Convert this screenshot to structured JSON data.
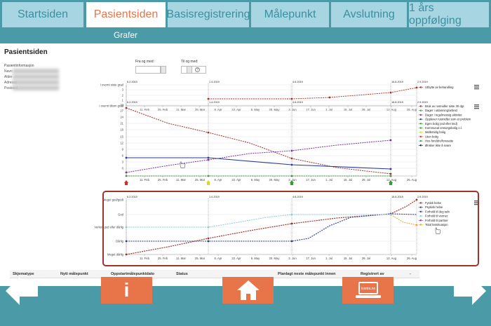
{
  "tabs": [
    {
      "label": "Startsiden",
      "active": false
    },
    {
      "label": "Pasientsiden",
      "active": true
    },
    {
      "label": "Basisregistrering",
      "active": false
    },
    {
      "label": "Målepunkt",
      "active": false
    },
    {
      "label": "Avslutning",
      "active": false
    },
    {
      "label": "1 års oppfølging",
      "active": false
    }
  ],
  "subtab": "Grafer",
  "page_title": "Pasientsiden",
  "patient_info": {
    "label": "Pasientinformasjon",
    "rows": [
      "Navn",
      "Alder",
      "Adresse",
      "Poststed"
    ]
  },
  "date_filter": {
    "from_label": "Fra og med:",
    "to_label": "Til og med:",
    "help": "?"
  },
  "chart_menu_icon": "menu-icon",
  "charts": [
    {
      "name": "treatment",
      "y_ticks": [
        "I overnt siste grad",
        "3",
        "2",
        "1",
        "I overnt tiltom grad"
      ],
      "x_ticks": [
        "11. Feb",
        "25. Feb",
        "11. Mar",
        "25. Mar",
        "8. Apr",
        "22. Apr",
        "6. May",
        "20. May",
        "3. Jun",
        "17. Jun",
        "1. Jul",
        "15. Jul",
        "29. Jul",
        "12. Aug",
        "26. Aug"
      ],
      "event_dates": [
        "6.2.2019",
        "1.4.2019",
        "4.6.2019",
        "16.8.2019",
        "2.9.2019"
      ],
      "legend": [
        {
          "label": "Utbytte av behandling",
          "color": "#b02a1e"
        }
      ]
    },
    {
      "name": "activities",
      "y_ticks": [
        "30",
        "27",
        "24",
        "21",
        "18",
        "15",
        "12",
        "9",
        "6",
        "3",
        "0"
      ],
      "x_ticks": [
        "11. Feb",
        "25. Feb",
        "11. Mar",
        "25. Mar",
        "8. Apr",
        "22. Apr",
        "6. May",
        "20. May",
        "3. Jun",
        "17. Jun",
        "1. Jul",
        "15. Jul",
        "29. Jul",
        "12. Aug",
        "26. Aug"
      ],
      "event_dates": [
        "6.2.2019",
        "1.4.2019",
        "4.6.2019",
        "16.8.2019",
        "2.9.2019"
      ],
      "legend": [
        {
          "label": "Bruk av rusmidler siste 30 dgr.",
          "color": "#a0322a"
        },
        {
          "label": "Dager i utdanning/arbeid",
          "color": "#4a8f4a"
        },
        {
          "label": "Dager i regelmessig aktivitet",
          "color": "#7b2fa0"
        },
        {
          "label": "Opplever rusmidler som et problem",
          "color": "#2a3a9c"
        },
        {
          "label": "Egen bolig (eid eller leid)",
          "color": "#2fa02f"
        },
        {
          "label": "Kommunal omsorgsbolig o.l.",
          "color": "#2fa02f"
        },
        {
          "label": "Midlertidig bolig",
          "color": "#d9d92a"
        },
        {
          "label": "Uten bolig",
          "color": "#d92a2a"
        },
        {
          "label": "Hos foreldre/foresatte",
          "color": "#2fa02f"
        },
        {
          "label": "Ønsker ikke å svare",
          "color": "#111111"
        }
      ]
    },
    {
      "name": "health",
      "y_ticks": [
        "Meget god/godt",
        "God",
        "Verken god eller dårlig",
        "Dårlig",
        "Meget dårlig"
      ],
      "x_ticks": [
        "11. Feb",
        "25. Feb",
        "11. Mar",
        "25. Mar",
        "8. Apr",
        "22. Apr",
        "6. May",
        "20. May",
        "3. Jun",
        "17. Jun",
        "1. Jul",
        "15. Jul",
        "29. Jul",
        "12. Aug",
        "26. Aug"
      ],
      "event_dates": [
        "6.2.2019",
        "1.4.2019",
        "4.6.2019",
        "16.8.2019",
        "2.9.2019"
      ],
      "legend": [
        {
          "label": "Fysisk helse",
          "color": "#a0322a"
        },
        {
          "label": "Psykisk helse",
          "color": "#2a3a9c"
        },
        {
          "label": "Forhold til deg selv",
          "color": "#2a3a9c"
        },
        {
          "label": "Forhold til venner",
          "color": "#8fc8d8"
        },
        {
          "label": "Forhold til partner",
          "color": "#7b2fa0"
        },
        {
          "label": "Total livssituasjon",
          "color": "#e8a030"
        }
      ]
    }
  ],
  "table": {
    "headers": [
      "Skjematype",
      "Nytt målepunkt",
      "Oppstartmålepunktdato",
      "Status",
      "Planlagt neste målepunkt innen",
      "Registrert av",
      "-"
    ]
  },
  "footer": {
    "info_label": "i",
    "home_icon": "home-icon",
    "kostra_label": "kostra.no",
    "back_icon": "arrow-left-icon",
    "forward_icon": "arrow-right-icon"
  },
  "colors": {
    "teal": "#4a9aa8",
    "tab_bg": "#a7d6e2",
    "tab_text": "#3a8fa1",
    "accent": "#e8744a",
    "frame": "#a0322a"
  }
}
